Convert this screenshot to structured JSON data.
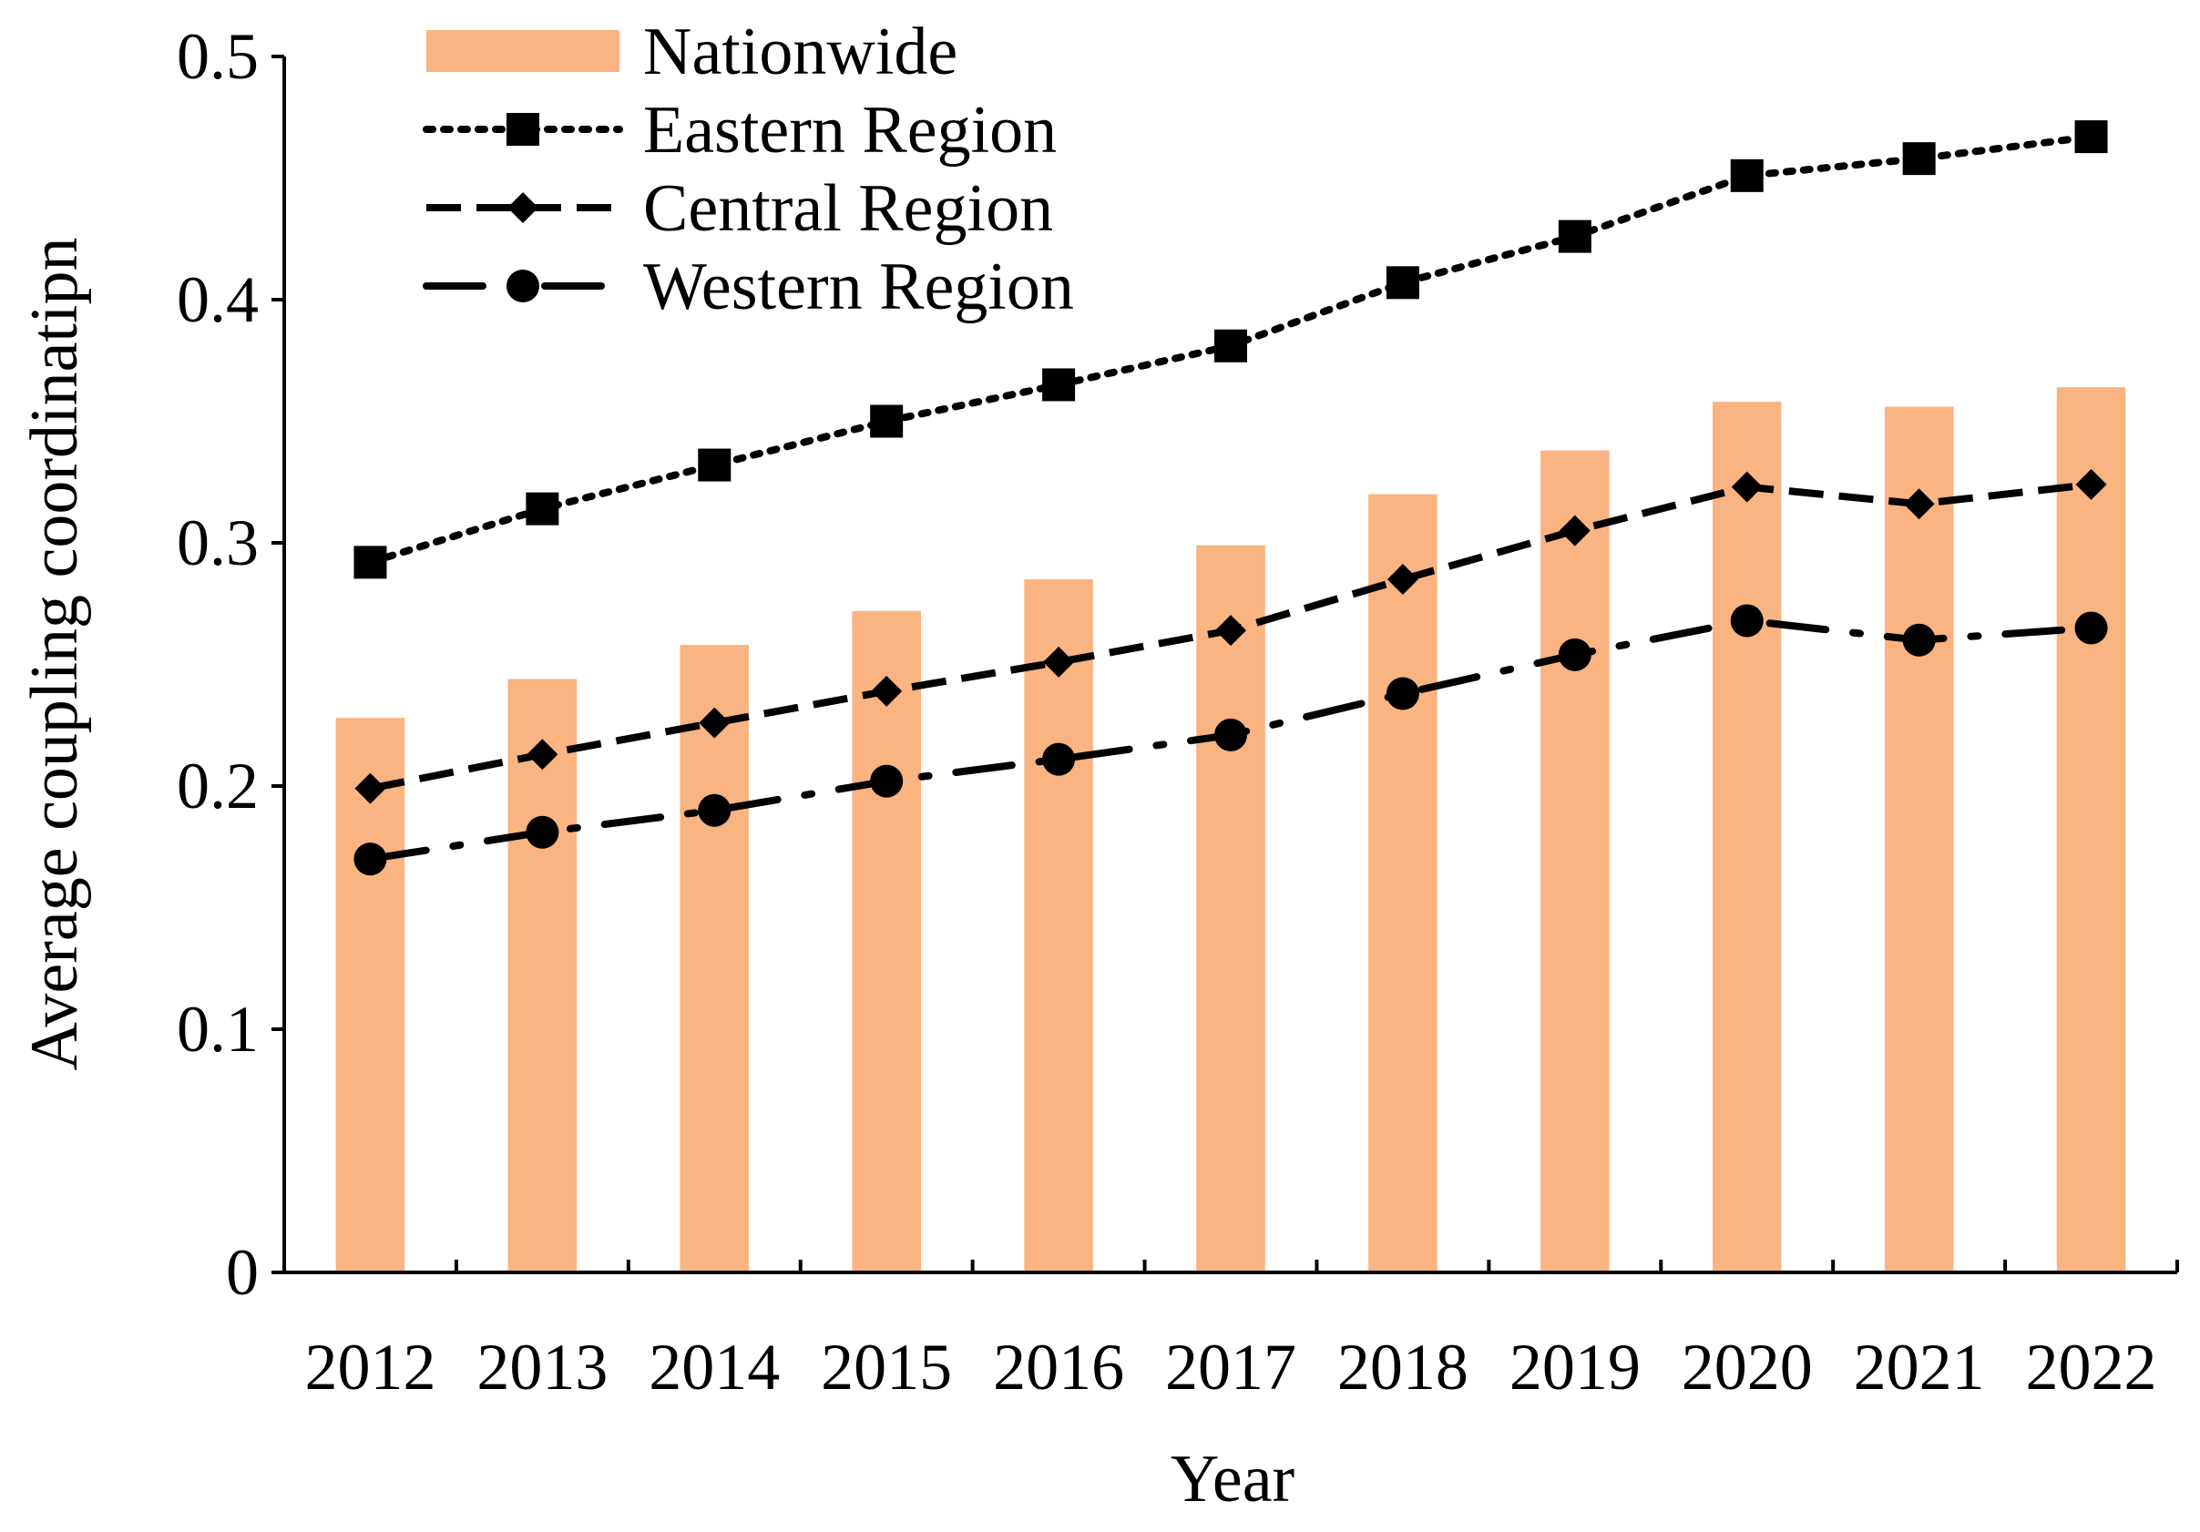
{
  "chart_data": {
    "type": "bar+line",
    "title": "",
    "xlabel": "Year",
    "ylabel": "Average coupling coordinatipn",
    "ylim": [
      0,
      0.5
    ],
    "yticks": [
      0,
      0.1,
      0.2,
      0.3,
      0.4,
      0.5
    ],
    "ytick_labels": [
      "0",
      "0.1",
      "0.2",
      "0.3",
      "0.4",
      "0.5"
    ],
    "categories": [
      "2012",
      "2013",
      "2014",
      "2015",
      "2016",
      "2017",
      "2018",
      "2019",
      "2020",
      "2021",
      "2022"
    ],
    "grid": false,
    "legend_position": "top-left",
    "series": [
      {
        "name": "Nationwide",
        "type": "bar",
        "color": "#F9B482",
        "values": [
          0.228,
          0.244,
          0.258,
          0.272,
          0.285,
          0.299,
          0.32,
          0.338,
          0.358,
          0.356,
          0.364
        ]
      },
      {
        "name": "Eastern Region",
        "type": "line",
        "dash": "dotted",
        "marker": "square",
        "color": "#000000",
        "values": [
          0.292,
          0.314,
          0.332,
          0.35,
          0.365,
          0.381,
          0.407,
          0.426,
          0.451,
          0.458,
          0.467
        ]
      },
      {
        "name": "Central Region",
        "type": "line",
        "dash": "dashed",
        "marker": "diamond",
        "color": "#000000",
        "values": [
          0.199,
          0.213,
          0.226,
          0.239,
          0.251,
          0.264,
          0.285,
          0.305,
          0.323,
          0.316,
          0.324
        ]
      },
      {
        "name": "Western Region",
        "type": "line",
        "dash": "dash-dot",
        "marker": "circle",
        "color": "#000000",
        "values": [
          0.17,
          0.181,
          0.19,
          0.202,
          0.211,
          0.221,
          0.238,
          0.254,
          0.268,
          0.26,
          0.265
        ]
      }
    ]
  }
}
